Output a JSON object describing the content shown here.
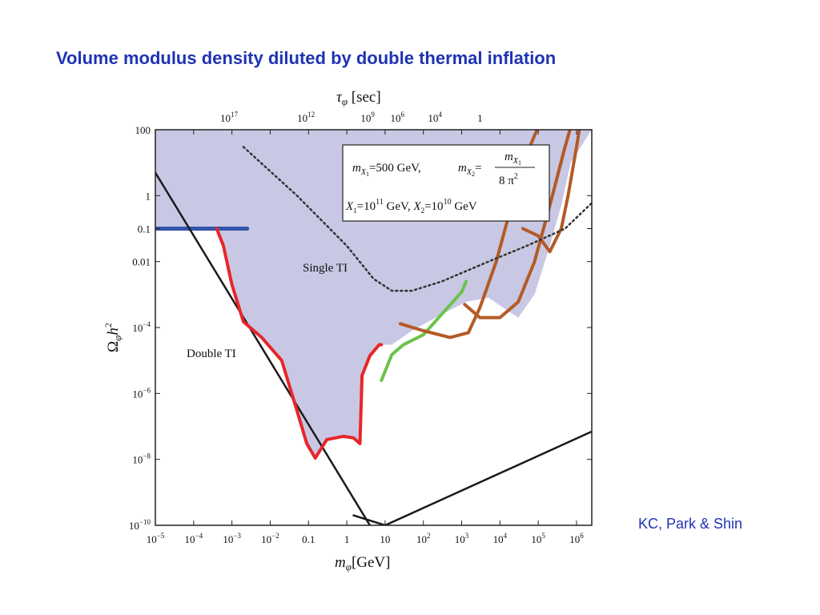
{
  "slide": {
    "title": "Volume modulus density diluted by double thermal inflation",
    "credit": "KC, Park & Shin"
  },
  "colors": {
    "title": "#1f33b5",
    "region_fill": "#c8c8e4",
    "blue_line": "#3355aa",
    "red_curve": "#e8262a",
    "green_curve": "#6cc24a",
    "brown_curve": "#b35a26",
    "black_line": "#1a1a1a",
    "dotted_line": "#333333"
  },
  "chart_data": {
    "type": "line",
    "x_scale": "log",
    "y_scale": "log",
    "xlabel": "m_φ[GeV]",
    "ylabel": "Ω_φh²",
    "top_axis_label": "τ_φ [sec]",
    "xlim": [
      1e-05,
      2500000
    ],
    "ylim": [
      1e-10,
      100
    ],
    "x_ticks": [
      {
        "value": 1e-05,
        "base": "10",
        "exp": "−5"
      },
      {
        "value": 0.0001,
        "base": "10",
        "exp": "−4"
      },
      {
        "value": 0.001,
        "base": "10",
        "exp": "−3"
      },
      {
        "value": 0.01,
        "base": "10",
        "exp": "−2"
      },
      {
        "value": 0.1,
        "base": "0.1",
        "exp": ""
      },
      {
        "value": 1,
        "base": "1",
        "exp": ""
      },
      {
        "value": 10,
        "base": "10",
        "exp": ""
      },
      {
        "value": 100,
        "base": "10",
        "exp": "2"
      },
      {
        "value": 1000,
        "base": "10",
        "exp": "3"
      },
      {
        "value": 10000,
        "base": "10",
        "exp": "4"
      },
      {
        "value": 100000,
        "base": "10",
        "exp": "5"
      },
      {
        "value": 1000000,
        "base": "10",
        "exp": "6"
      }
    ],
    "y_ticks": [
      {
        "value": 100,
        "base": "100",
        "exp": ""
      },
      {
        "value": 1,
        "base": "1",
        "exp": ""
      },
      {
        "value": 0.1,
        "base": "0.1",
        "exp": ""
      },
      {
        "value": 0.01,
        "base": "0.01",
        "exp": ""
      },
      {
        "value": 0.0001,
        "base": "10",
        "exp": "−4"
      },
      {
        "value": 1e-06,
        "base": "10",
        "exp": "−6"
      },
      {
        "value": 1e-08,
        "base": "10",
        "exp": "−8"
      },
      {
        "value": 1e-10,
        "base": "10",
        "exp": "−10"
      }
    ],
    "top_ticks": [
      {
        "x_value": 0.00084,
        "base": "10",
        "exp": "17"
      },
      {
        "x_value": 0.086,
        "base": "10",
        "exp": "12"
      },
      {
        "x_value": 3.5,
        "base": "10",
        "exp": "9"
      },
      {
        "x_value": 21,
        "base": "10",
        "exp": "6"
      },
      {
        "x_value": 200,
        "base": "10",
        "exp": "4"
      },
      {
        "x_value": 3000,
        "base": "1",
        "exp": ""
      }
    ],
    "annotations": {
      "single_ti": "Single TI",
      "double_ti": "Double TI"
    },
    "legend_box": {
      "line1_a": "=500 GeV,",
      "line1_b": "=",
      "m_sym": "m",
      "x1_sub": "X",
      "x1_subsub": "1",
      "frac_num": "m",
      "frac_den": "8 π",
      "frac_den_exp": "2",
      "x1_label": "X",
      "x1_eq": "=10",
      "x1_exp": "11",
      "x1_unit": "GeV,",
      "x2_label": "X",
      "x2_eq": "=10",
      "x2_exp": "10",
      "x2_unit": "GeV"
    },
    "region_boundary": [
      [
        1e-05,
        100
      ],
      [
        1e-05,
        0.1
      ],
      [
        0.0004,
        0.1
      ],
      [
        0.0006,
        0.03
      ],
      [
        0.001,
        0.002
      ],
      [
        0.002,
        0.00015
      ],
      [
        0.006,
        5e-05
      ],
      [
        0.02,
        1e-05
      ],
      [
        0.05,
        3e-07
      ],
      [
        0.09,
        3e-08
      ],
      [
        0.15,
        1.1e-08
      ],
      [
        0.3,
        4e-08
      ],
      [
        0.8,
        5e-08
      ],
      [
        1.5,
        4.5e-08
      ],
      [
        2.2,
        3e-08
      ],
      [
        2.5,
        3.5e-06
      ],
      [
        4,
        1.4e-05
      ],
      [
        7,
        3e-05
      ],
      [
        15,
        3e-05
      ],
      [
        50,
        8e-05
      ],
      [
        300,
        0.00025
      ],
      [
        1300,
        0.0006
      ],
      [
        5000,
        0.0008
      ],
      [
        30000,
        0.0002
      ],
      [
        80000,
        0.001
      ],
      [
        200000,
        0.03
      ],
      [
        400000,
        0.5
      ],
      [
        700000,
        10
      ],
      [
        2500000,
        100
      ]
    ],
    "series": [
      {
        "key": "blue_bound",
        "color_key": "blue_line",
        "width": 5,
        "dash": "",
        "points": [
          [
            1e-05,
            0.1
          ],
          [
            0.0025,
            0.1
          ]
        ]
      },
      {
        "key": "double_ti_left",
        "color_key": "black_line",
        "width": 2.5,
        "dash": "",
        "points": [
          [
            1e-05,
            5
          ],
          [
            4,
            1e-10
          ]
        ]
      },
      {
        "key": "double_ti_right",
        "color_key": "black_line",
        "width": 2.5,
        "dash": "",
        "points": [
          [
            1.5,
            2e-10
          ],
          [
            10,
            1e-10
          ],
          [
            2500000,
            7e-08
          ]
        ]
      },
      {
        "key": "red_curve",
        "color_key": "red_curve",
        "width": 4,
        "dash": "",
        "points": [
          [
            0.0004,
            0.1
          ],
          [
            0.0006,
            0.03
          ],
          [
            0.001,
            0.002
          ],
          [
            0.002,
            0.00015
          ],
          [
            0.006,
            5e-05
          ],
          [
            0.02,
            1e-05
          ],
          [
            0.05,
            3e-07
          ],
          [
            0.09,
            3e-08
          ],
          [
            0.15,
            1.1e-08
          ],
          [
            0.3,
            4e-08
          ],
          [
            0.8,
            5e-08
          ],
          [
            1.5,
            4.5e-08
          ],
          [
            2.2,
            3e-08
          ],
          [
            2.5,
            3.5e-06
          ],
          [
            4,
            1.4e-05
          ],
          [
            7,
            3e-05
          ],
          [
            8,
            3e-05
          ]
        ]
      },
      {
        "key": "green_curve",
        "color_key": "green_curve",
        "width": 4,
        "dash": "",
        "points": [
          [
            8,
            2.5e-06
          ],
          [
            15,
            1.5e-05
          ],
          [
            30,
            3e-05
          ],
          [
            100,
            6e-05
          ],
          [
            300,
            0.00025
          ],
          [
            1000,
            0.0012
          ],
          [
            1300,
            0.0025
          ]
        ]
      },
      {
        "key": "brown_1",
        "color_key": "brown_curve",
        "width": 4,
        "dash": "",
        "points": [
          [
            25,
            0.00013
          ],
          [
            100,
            8e-05
          ],
          [
            500,
            5e-05
          ],
          [
            1500,
            7e-05
          ],
          [
            3000,
            0.0004
          ],
          [
            8000,
            0.01
          ],
          [
            20000,
            0.5
          ],
          [
            60000,
            30
          ],
          [
            120000,
            200
          ]
        ]
      },
      {
        "key": "brown_2",
        "color_key": "brown_curve",
        "width": 4,
        "dash": "",
        "points": [
          [
            1200,
            0.0005
          ],
          [
            3000,
            0.0002
          ],
          [
            10000,
            0.0002
          ],
          [
            30000,
            0.0006
          ],
          [
            80000,
            0.01
          ],
          [
            200000,
            0.5
          ],
          [
            500000,
            30
          ],
          [
            800000,
            200
          ]
        ]
      },
      {
        "key": "brown_3",
        "color_key": "brown_curve",
        "width": 4,
        "dash": "",
        "points": [
          [
            40000,
            0.1
          ],
          [
            100000,
            0.06
          ],
          [
            200000,
            0.02
          ],
          [
            400000,
            0.1
          ],
          [
            600000,
            1
          ],
          [
            1000000,
            30
          ],
          [
            1300000,
            200
          ]
        ]
      },
      {
        "key": "dotted_single_ti",
        "color_key": "dotted_line",
        "width": 2.5,
        "dash": "2,4",
        "points": [
          [
            0.002,
            30
          ],
          [
            0.05,
            1
          ],
          [
            1,
            0.03
          ],
          [
            5,
            0.003
          ],
          [
            15,
            0.0013
          ],
          [
            50,
            0.0013
          ],
          [
            300,
            0.0025
          ],
          [
            5000,
            0.01
          ],
          [
            50000,
            0.03
          ],
          [
            500000,
            0.1
          ],
          [
            2500000,
            0.6
          ]
        ]
      }
    ]
  }
}
